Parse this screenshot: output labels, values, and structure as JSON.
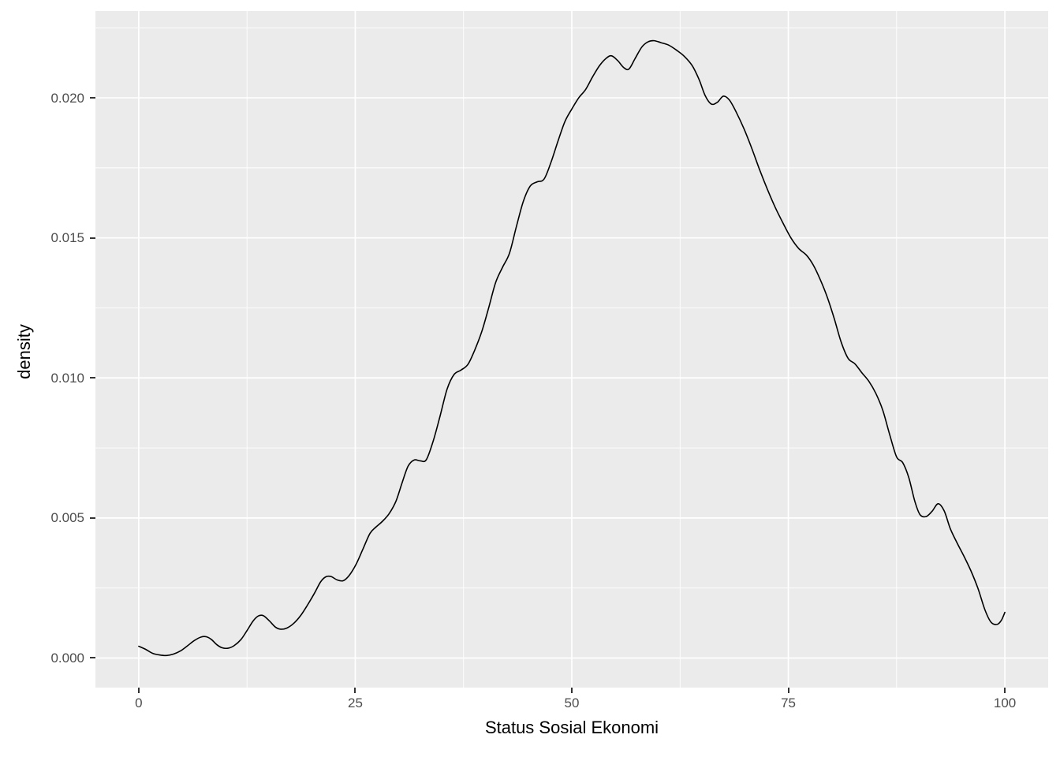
{
  "chart_data": {
    "type": "line",
    "subtype": "kernel-density-curve",
    "title": "",
    "xlabel": "Status Sosial Ekonomi",
    "ylabel": "density",
    "x_tick_labels": [
      "0",
      "25",
      "50",
      "75",
      "100"
    ],
    "x_tick_values": [
      0,
      25,
      50,
      75,
      100
    ],
    "y_tick_labels": [
      "0.000",
      "0.005",
      "0.010",
      "0.015",
      "0.020"
    ],
    "y_tick_values": [
      0,
      0.005,
      0.01,
      0.015,
      0.02
    ],
    "x_minor_gridlines": [
      12.5,
      37.5,
      62.5,
      87.5
    ],
    "y_minor_gridlines": [
      0.0025,
      0.0075,
      0.0125,
      0.0175,
      0.0225
    ],
    "xlim": [
      -5,
      105
    ],
    "ylim": [
      -0.001056,
      0.023099
    ],
    "grid": "white major and minor gridlines on gray panel",
    "legend_position": "none",
    "series": [
      {
        "name": "density",
        "points": [
          [
            0.0,
            0.00042
          ],
          [
            0.8,
            0.00031
          ],
          [
            1.6,
            0.00017
          ],
          [
            2.4,
            0.00011
          ],
          [
            3.2,
            9e-05
          ],
          [
            4.0,
            0.00014
          ],
          [
            4.8,
            0.00025
          ],
          [
            5.6,
            0.00043
          ],
          [
            6.4,
            0.00062
          ],
          [
            7.2,
            0.00075
          ],
          [
            7.8,
            0.00076
          ],
          [
            8.4,
            0.00066
          ],
          [
            9.0,
            0.00048
          ],
          [
            9.6,
            0.00037
          ],
          [
            10.3,
            0.00035
          ],
          [
            11.0,
            0.00044
          ],
          [
            11.8,
            0.00066
          ],
          [
            12.5,
            0.00098
          ],
          [
            13.2,
            0.00132
          ],
          [
            13.8,
            0.0015
          ],
          [
            14.4,
            0.00151
          ],
          [
            15.1,
            0.00132
          ],
          [
            15.8,
            0.0011
          ],
          [
            16.4,
            0.00103
          ],
          [
            17.1,
            0.00107
          ],
          [
            17.9,
            0.00124
          ],
          [
            18.7,
            0.00152
          ],
          [
            19.5,
            0.0019
          ],
          [
            20.3,
            0.00232
          ],
          [
            21.0,
            0.00272
          ],
          [
            21.6,
            0.0029
          ],
          [
            22.2,
            0.00291
          ],
          [
            22.9,
            0.00279
          ],
          [
            23.6,
            0.00276
          ],
          [
            24.3,
            0.00295
          ],
          [
            25.1,
            0.00335
          ],
          [
            25.9,
            0.0039
          ],
          [
            26.7,
            0.00445
          ],
          [
            27.4,
            0.00468
          ],
          [
            28.1,
            0.00487
          ],
          [
            28.9,
            0.00515
          ],
          [
            29.7,
            0.0056
          ],
          [
            30.4,
            0.00625
          ],
          [
            31.1,
            0.00685
          ],
          [
            31.8,
            0.00707
          ],
          [
            32.5,
            0.00704
          ],
          [
            33.2,
            0.00708
          ],
          [
            34.0,
            0.00775
          ],
          [
            34.8,
            0.00865
          ],
          [
            35.6,
            0.0096
          ],
          [
            36.4,
            0.01012
          ],
          [
            37.2,
            0.01028
          ],
          [
            38.0,
            0.01048
          ],
          [
            38.8,
            0.011
          ],
          [
            39.6,
            0.01165
          ],
          [
            40.4,
            0.0125
          ],
          [
            41.2,
            0.0134
          ],
          [
            42.0,
            0.01395
          ],
          [
            42.8,
            0.01445
          ],
          [
            43.6,
            0.0154
          ],
          [
            44.4,
            0.0163
          ],
          [
            45.2,
            0.01685
          ],
          [
            46.0,
            0.017
          ],
          [
            46.8,
            0.0171
          ],
          [
            47.6,
            0.0177
          ],
          [
            48.4,
            0.01845
          ],
          [
            49.2,
            0.01915
          ],
          [
            50.0,
            0.0196
          ],
          [
            50.8,
            0.02
          ],
          [
            51.6,
            0.0203
          ],
          [
            52.4,
            0.02075
          ],
          [
            53.2,
            0.02115
          ],
          [
            54.0,
            0.02142
          ],
          [
            54.6,
            0.0215
          ],
          [
            55.3,
            0.02133
          ],
          [
            56.0,
            0.02108
          ],
          [
            56.6,
            0.02103
          ],
          [
            57.3,
            0.0214
          ],
          [
            58.1,
            0.02182
          ],
          [
            58.8,
            0.022
          ],
          [
            59.5,
            0.02204
          ],
          [
            60.3,
            0.02197
          ],
          [
            61.2,
            0.02188
          ],
          [
            62.1,
            0.0217
          ],
          [
            63.0,
            0.02148
          ],
          [
            63.9,
            0.02115
          ],
          [
            64.7,
            0.02065
          ],
          [
            65.4,
            0.02008
          ],
          [
            66.1,
            0.01978
          ],
          [
            66.8,
            0.01984
          ],
          [
            67.5,
            0.02006
          ],
          [
            68.2,
            0.01992
          ],
          [
            69.0,
            0.01948
          ],
          [
            69.9,
            0.01888
          ],
          [
            70.8,
            0.01818
          ],
          [
            71.7,
            0.01742
          ],
          [
            72.6,
            0.01672
          ],
          [
            73.5,
            0.01608
          ],
          [
            74.4,
            0.01552
          ],
          [
            75.3,
            0.015
          ],
          [
            76.2,
            0.01462
          ],
          [
            77.1,
            0.01438
          ],
          [
            77.9,
            0.01402
          ],
          [
            78.7,
            0.0135
          ],
          [
            79.5,
            0.01288
          ],
          [
            80.3,
            0.01212
          ],
          [
            81.1,
            0.01128
          ],
          [
            81.9,
            0.0107
          ],
          [
            82.7,
            0.0105
          ],
          [
            83.5,
            0.01018
          ],
          [
            84.3,
            0.00988
          ],
          [
            85.1,
            0.00945
          ],
          [
            85.9,
            0.00885
          ],
          [
            86.7,
            0.00798
          ],
          [
            87.5,
            0.00718
          ],
          [
            88.2,
            0.00698
          ],
          [
            88.9,
            0.00645
          ],
          [
            89.6,
            0.0056
          ],
          [
            90.2,
            0.00512
          ],
          [
            90.9,
            0.00505
          ],
          [
            91.6,
            0.00524
          ],
          [
            92.3,
            0.00551
          ],
          [
            93.0,
            0.00525
          ],
          [
            93.7,
            0.00462
          ],
          [
            94.5,
            0.0041
          ],
          [
            95.3,
            0.00362
          ],
          [
            96.1,
            0.0031
          ],
          [
            96.9,
            0.00248
          ],
          [
            97.7,
            0.00172
          ],
          [
            98.4,
            0.00128
          ],
          [
            99.1,
            0.0012
          ],
          [
            99.6,
            0.00135
          ],
          [
            100.0,
            0.00163
          ]
        ]
      }
    ]
  },
  "style": {
    "panel_background": "#EBEBEB",
    "gridline_color": "#FFFFFF",
    "curve_color": "#000000",
    "tick_label_color": "#4D4D4D",
    "axis_title_color": "#000000",
    "tick_mark_color": "#333333",
    "figure_background": "#FFFFFF"
  }
}
